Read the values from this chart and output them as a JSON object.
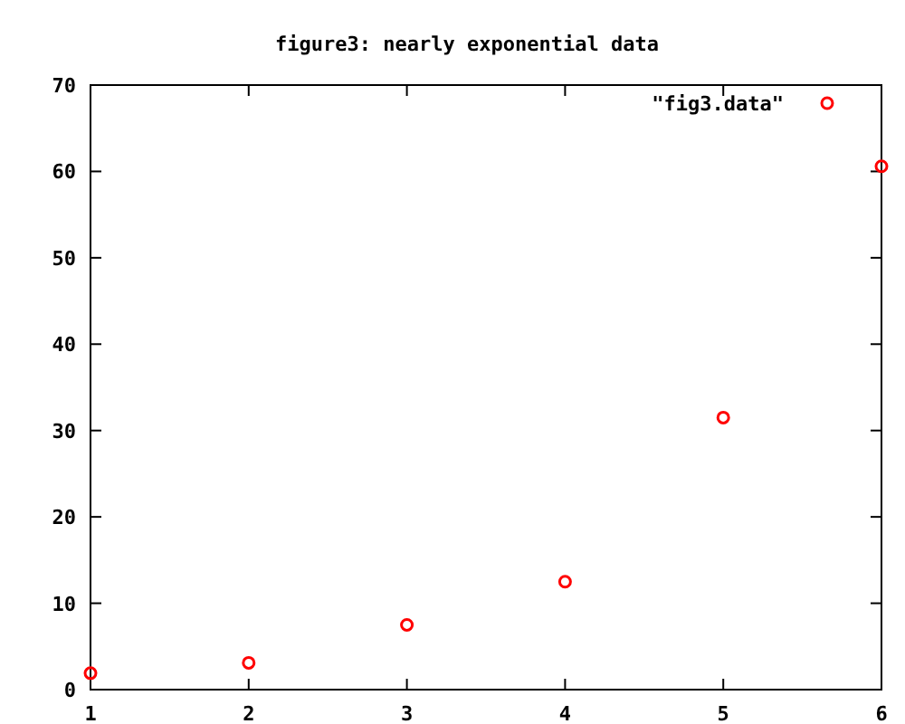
{
  "chart_data": {
    "type": "scatter",
    "title": "figure3: nearly exponential data",
    "x": [
      1,
      2,
      3,
      4,
      5,
      6
    ],
    "series": [
      {
        "name": "\"fig3.data\"",
        "color": "#ff0000",
        "values": [
          1.9,
          3.1,
          7.5,
          12.5,
          31.5,
          60.6
        ]
      }
    ],
    "xlim": [
      1,
      6
    ],
    "xticks": [
      1,
      2,
      3,
      4,
      5,
      6
    ],
    "ylim": [
      0,
      70
    ],
    "yticks": [
      0,
      10,
      20,
      30,
      40,
      50,
      60,
      70
    ],
    "legend": "top right",
    "marker": "circle",
    "grid": false
  }
}
